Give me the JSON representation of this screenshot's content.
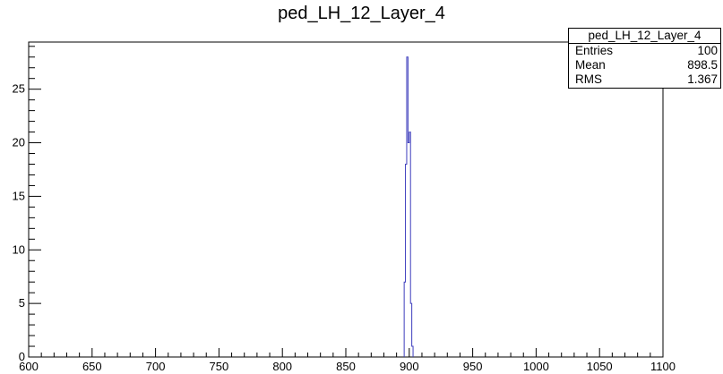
{
  "chart_data": {
    "type": "bar",
    "title": "ped_LH_12_Layer_4",
    "xlabel": "",
    "ylabel": "",
    "xlim": [
      600,
      1100
    ],
    "ylim": [
      0,
      29.4
    ],
    "x_ticks": [
      "600",
      "650",
      "700",
      "750",
      "800",
      "850",
      "900",
      "950",
      "1000",
      "1050",
      "1100"
    ],
    "y_ticks": [
      "0",
      "5",
      "10",
      "15",
      "20",
      "25"
    ],
    "bin_width": 1,
    "series": [
      {
        "bins": [
          {
            "x": 896,
            "count": 7
          },
          {
            "x": 897,
            "count": 18
          },
          {
            "x": 898,
            "count": 28
          },
          {
            "x": 899,
            "count": 20
          },
          {
            "x": 900,
            "count": 21
          },
          {
            "x": 901,
            "count": 5
          },
          {
            "x": 902,
            "count": 1
          }
        ]
      }
    ],
    "line_color": "#3d3dbd",
    "grid": false,
    "legend": "none",
    "stats": {
      "name": "ped_LH_12_Layer_4",
      "rows": [
        {
          "label": "Entries",
          "value": "100"
        },
        {
          "label": "Mean",
          "value": "898.5"
        },
        {
          "label": "RMS",
          "value": "1.367"
        }
      ]
    }
  }
}
